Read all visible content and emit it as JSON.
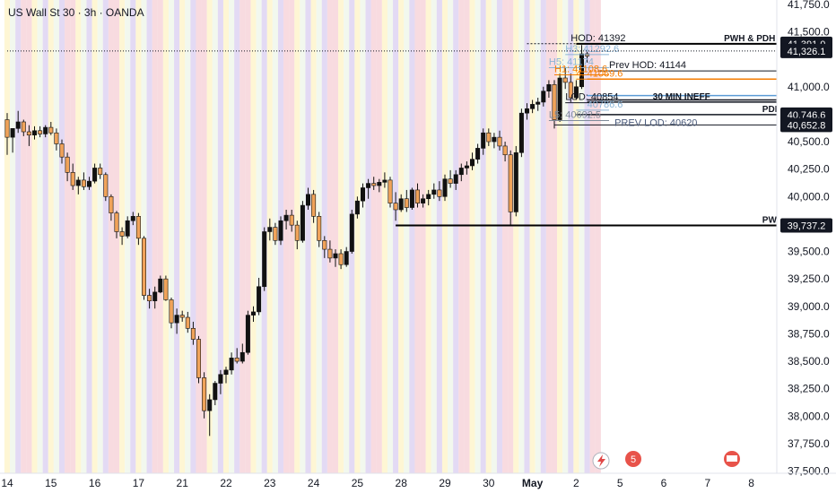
{
  "title": "US Wall St 30 · 3h · OANDA",
  "chart_data": {
    "type": "candlestick",
    "ylim": [
      37480,
      41790
    ],
    "y_ticks": [
      {
        "value": 41750,
        "label": "41,750.0"
      },
      {
        "value": 41500,
        "label": "41,500.0"
      },
      {
        "value": 41000,
        "label": "41,000.0"
      },
      {
        "value": 40500,
        "label": "40,500.0"
      },
      {
        "value": 40250,
        "label": "40,250.0"
      },
      {
        "value": 40000,
        "label": "40,000.0"
      },
      {
        "value": 39500,
        "label": "39,500.0"
      },
      {
        "value": 39250,
        "label": "39,250.0"
      },
      {
        "value": 39000,
        "label": "39,000.0"
      },
      {
        "value": 38750,
        "label": "38,750.0"
      },
      {
        "value": 38500,
        "label": "38,500.0"
      },
      {
        "value": 38250,
        "label": "38,250.0"
      },
      {
        "value": 38000,
        "label": "38,000.0"
      },
      {
        "value": 37750,
        "label": "37,750.0"
      },
      {
        "value": 37500,
        "label": "37,500.0"
      }
    ],
    "x_ticks": [
      {
        "label": "14",
        "bar": 0,
        "bold": false
      },
      {
        "label": "15",
        "bar": 8,
        "bold": false
      },
      {
        "label": "16",
        "bar": 16,
        "bold": false
      },
      {
        "label": "17",
        "bar": 24,
        "bold": false
      },
      {
        "label": "21",
        "bar": 32,
        "bold": false
      },
      {
        "label": "22",
        "bar": 40,
        "bold": false
      },
      {
        "label": "23",
        "bar": 48,
        "bold": false
      },
      {
        "label": "24",
        "bar": 56,
        "bold": false
      },
      {
        "label": "25",
        "bar": 64,
        "bold": false
      },
      {
        "label": "28",
        "bar": 72,
        "bold": false
      },
      {
        "label": "29",
        "bar": 80,
        "bold": false
      },
      {
        "label": "30",
        "bar": 88,
        "bold": false
      },
      {
        "label": "May",
        "bar": 96,
        "bold": true
      },
      {
        "label": "2",
        "bar": 104,
        "bold": false
      },
      {
        "label": "5",
        "bar": 112,
        "bold": false
      },
      {
        "label": "6",
        "bar": 120,
        "bold": false
      },
      {
        "label": "7",
        "bar": 128,
        "bold": false
      },
      {
        "label": "8",
        "bar": 136,
        "bold": false
      }
    ],
    "bar_count": 142,
    "candles": [
      [
        40700,
        40760,
        40380,
        40540
      ],
      [
        40540,
        40620,
        40400,
        40620
      ],
      [
        40620,
        40780,
        40580,
        40680
      ],
      [
        40680,
        40700,
        40550,
        40590
      ],
      [
        40590,
        40650,
        40460,
        40560
      ],
      [
        40560,
        40640,
        40520,
        40600
      ],
      [
        40600,
        40640,
        40540,
        40570
      ],
      [
        40570,
        40650,
        40540,
        40630
      ],
      [
        40630,
        40680,
        40560,
        40580
      ],
      [
        40580,
        40620,
        40420,
        40480
      ],
      [
        40480,
        40520,
        40300,
        40360
      ],
      [
        40360,
        40400,
        40140,
        40220
      ],
      [
        40220,
        40300,
        40060,
        40100
      ],
      [
        40100,
        40180,
        40020,
        40150
      ],
      [
        40150,
        40220,
        40060,
        40090
      ],
      [
        40090,
        40180,
        40060,
        40140
      ],
      [
        40140,
        40300,
        40120,
        40260
      ],
      [
        40260,
        40300,
        40160,
        40200
      ],
      [
        40200,
        40220,
        39960,
        40000
      ],
      [
        40000,
        40020,
        39780,
        39850
      ],
      [
        39850,
        39870,
        39620,
        39680
      ],
      [
        39680,
        39720,
        39560,
        39640
      ],
      [
        39640,
        39820,
        39620,
        39780
      ],
      [
        39780,
        39860,
        39740,
        39820
      ],
      [
        39820,
        39850,
        39560,
        39620
      ],
      [
        39620,
        39640,
        39060,
        39100
      ],
      [
        39100,
        39160,
        38980,
        39050
      ],
      [
        39050,
        39180,
        38980,
        39130
      ],
      [
        39130,
        39280,
        39120,
        39250
      ],
      [
        39250,
        39280,
        39050,
        39060
      ],
      [
        39060,
        39080,
        38800,
        38850
      ],
      [
        38850,
        38980,
        38750,
        38920
      ],
      [
        38920,
        38960,
        38860,
        38900
      ],
      [
        38900,
        38950,
        38760,
        38800
      ],
      [
        38800,
        38860,
        38650,
        38700
      ],
      [
        38700,
        38730,
        38300,
        38350
      ],
      [
        38350,
        38400,
        37980,
        38050
      ],
      [
        38050,
        38200,
        37820,
        38150
      ],
      [
        38150,
        38320,
        38100,
        38300
      ],
      [
        38300,
        38420,
        38200,
        38380
      ],
      [
        38380,
        38450,
        38300,
        38420
      ],
      [
        38420,
        38580,
        38380,
        38530
      ],
      [
        38530,
        38620,
        38480,
        38500
      ],
      [
        38500,
        38660,
        38480,
        38580
      ],
      [
        38580,
        38960,
        38560,
        38920
      ],
      [
        38920,
        39000,
        38860,
        38950
      ],
      [
        38950,
        39260,
        38920,
        39180
      ],
      [
        39180,
        39720,
        39140,
        39680
      ],
      [
        39680,
        39800,
        39600,
        39720
      ],
      [
        39720,
        39760,
        39560,
        39600
      ],
      [
        39600,
        39820,
        39560,
        39780
      ],
      [
        39780,
        39880,
        39700,
        39830
      ],
      [
        39830,
        39880,
        39680,
        39740
      ],
      [
        39740,
        39780,
        39520,
        39600
      ],
      [
        39600,
        39960,
        39580,
        39920
      ],
      [
        39920,
        40080,
        39880,
        40020
      ],
      [
        40020,
        40060,
        39760,
        39820
      ],
      [
        39820,
        39860,
        39540,
        39600
      ],
      [
        39600,
        39640,
        39440,
        39520
      ],
      [
        39520,
        39600,
        39400,
        39440
      ],
      [
        39440,
        39520,
        39360,
        39480
      ],
      [
        39480,
        39520,
        39340,
        39380
      ],
      [
        39380,
        39540,
        39360,
        39500
      ],
      [
        39500,
        39880,
        39480,
        39840
      ],
      [
        39840,
        40000,
        39800,
        39960
      ],
      [
        39960,
        40120,
        39900,
        40080
      ],
      [
        40080,
        40160,
        39980,
        40120
      ],
      [
        40120,
        40180,
        40060,
        40100
      ],
      [
        40100,
        40160,
        40040,
        40130
      ],
      [
        40130,
        40220,
        40080,
        40150
      ],
      [
        40150,
        40180,
        39900,
        39940
      ],
      [
        39940,
        40040,
        39780,
        39880
      ],
      [
        39880,
        40020,
        39860,
        39980
      ],
      [
        39980,
        40060,
        39860,
        39900
      ],
      [
        39900,
        40080,
        39880,
        40060
      ],
      [
        40060,
        40120,
        39900,
        39940
      ],
      [
        39940,
        40020,
        39900,
        39980
      ],
      [
        39980,
        40060,
        39920,
        40020
      ],
      [
        40020,
        40120,
        39980,
        40060
      ],
      [
        40060,
        40140,
        39960,
        40000
      ],
      [
        40000,
        40200,
        39960,
        40160
      ],
      [
        40160,
        40240,
        40080,
        40120
      ],
      [
        40120,
        40240,
        40060,
        40200
      ],
      [
        40200,
        40300,
        40140,
        40260
      ],
      [
        40260,
        40320,
        40200,
        40280
      ],
      [
        40280,
        40400,
        40240,
        40340
      ],
      [
        40340,
        40480,
        40300,
        40440
      ],
      [
        40440,
        40620,
        40380,
        40580
      ],
      [
        40580,
        40620,
        40460,
        40500
      ],
      [
        40500,
        40580,
        40440,
        40540
      ],
      [
        40540,
        40600,
        40420,
        40460
      ],
      [
        40460,
        40500,
        40320,
        40380
      ],
      [
        40380,
        40420,
        39740,
        39860
      ],
      [
        39860,
        40460,
        39820,
        40400
      ],
      [
        40400,
        40800,
        40360,
        40760
      ],
      [
        40760,
        40850,
        40700,
        40800
      ],
      [
        40800,
        40880,
        40760,
        40840
      ],
      [
        40840,
        40900,
        40780,
        40860
      ],
      [
        40860,
        41000,
        40820,
        40960
      ],
      [
        40960,
        41060,
        40900,
        41020
      ],
      [
        41020,
        41060,
        40620,
        40700
      ],
      [
        40700,
        41120,
        40680,
        41080
      ],
      [
        41080,
        41180,
        40980,
        41040
      ],
      [
        41040,
        41120,
        40860,
        40900
      ],
      [
        40900,
        41060,
        40880,
        41000
      ],
      [
        41000,
        41380,
        40980,
        41300
      ],
      [
        41300,
        41330,
        41220,
        41280
      ]
    ]
  },
  "levels": [
    {
      "name": "hod",
      "value": 41392,
      "label": "HOD: 41392",
      "color": "#131722",
      "x1": 95,
      "x2": 140,
      "width": 1,
      "dash": "2,2",
      "label_bar": 103
    },
    {
      "name": "pwh-pdh",
      "value": 41391,
      "label": "PWH & PDH",
      "price_label": "41,391.0",
      "color": "#000000",
      "x1": 104,
      "x2": 142,
      "width": 2,
      "dash": "",
      "label_bar": 131,
      "bold": true
    },
    {
      "name": "h3",
      "value": 41292.6,
      "label": "H3: 41292.6",
      "color": "#8ab4d6",
      "x1": 102,
      "x2": 110,
      "width": 1,
      "dash": "",
      "label_bar": 102
    },
    {
      "name": "current",
      "value": 41326.1,
      "label": "",
      "price_label": "41,326.1",
      "color": "#131722",
      "x1": 0,
      "x2": 142,
      "width": 1,
      "dash": "1,2",
      "label_bar": 0
    },
    {
      "name": "h5",
      "value": 41174,
      "label": "H5: 41174",
      "color": "#8ab4d6",
      "x1": 99,
      "x2": 110,
      "width": 1,
      "dash": "",
      "label_bar": 99
    },
    {
      "name": "prev-hod",
      "value": 41144,
      "label": "Prev HOD: 41144",
      "color": "#131722",
      "x1": 108,
      "x2": 142,
      "width": 1,
      "dash": "",
      "label_bar": 110
    },
    {
      "name": "h1",
      "value": 41108.6,
      "label": "H1: 41108.6",
      "color": "#f57c00",
      "x1": 100,
      "x2": 110,
      "width": 1,
      "dash": "",
      "label_bar": 100
    },
    {
      "name": "orange-1",
      "value": 41070,
      "label": "",
      "color": "#f57c00",
      "x1": 106,
      "x2": 142,
      "width": 1.5,
      "dash": "",
      "label_bar": 0
    },
    {
      "name": "l1",
      "value": 41069.6,
      "label": "4: 41069.6",
      "color": "#f57c00",
      "x1": 104,
      "x2": 110,
      "width": 1,
      "dash": "",
      "label_bar": 104
    },
    {
      "name": "blue-1",
      "value": 40920,
      "label": "",
      "color": "#5b9bd5",
      "x1": 106,
      "x2": 142,
      "width": 1.5,
      "dash": "",
      "label_bar": 0
    },
    {
      "name": "ineff-top",
      "value": 40880,
      "label": "",
      "color": "#131722",
      "x1": 106,
      "x2": 142,
      "width": 1.5,
      "dash": "",
      "label_bar": 0
    },
    {
      "name": "ineff",
      "value": 40860,
      "label": "30 MIN INEFF",
      "color": "#131722",
      "x1": 106,
      "x2": 142,
      "width": 1.5,
      "dash": "",
      "label_bar": 118,
      "bold": true
    },
    {
      "name": "lod",
      "value": 40854,
      "label": "LOD: 40854",
      "color": "#131722",
      "x1": 102,
      "x2": 110,
      "width": 1,
      "dash": "",
      "label_bar": 102
    },
    {
      "name": "l3",
      "value": 40786.6,
      "label": "40786.6",
      "color": "#8ab4d6",
      "x1": 104,
      "x2": 110,
      "width": 1,
      "dash": "",
      "label_bar": 106
    },
    {
      "name": "pdl",
      "value": 40746.6,
      "label": "PDL",
      "price_label": "40,746.6",
      "color": "#131722",
      "x1": 104,
      "x2": 142,
      "width": 1.5,
      "dash": "",
      "label_bar": 138,
      "bold": true
    },
    {
      "name": "prev-lod",
      "value": 40652.8,
      "label": "",
      "price_label": "40,652.8",
      "color": "#131722",
      "x1": 100,
      "x2": 142,
      "width": 1,
      "dash": "",
      "label_bar": 0
    },
    {
      "name": "l5",
      "value": 40692.5,
      "label": "L5: 40692.5",
      "color": "#7f8c9a",
      "x1": 99,
      "x2": 110,
      "width": 1,
      "dash": "",
      "label_bar": 99
    },
    {
      "name": "prev-lod-label",
      "value": 40620,
      "label": "PREV LOD: 40620",
      "color": "#4a5a7a",
      "x1": 0,
      "x2": 0,
      "width": 0,
      "dash": "",
      "label_bar": 111
    },
    {
      "name": "pwl",
      "value": 39737.2,
      "label": "PWL",
      "price_label": "39,737.2",
      "color": "#000000",
      "x1": 71,
      "x2": 142,
      "width": 2,
      "dash": "",
      "label_bar": 138,
      "bold": true
    }
  ],
  "session_colors": {
    "asia": "#d9cdf0",
    "london": "#f6cfd6",
    "ny": "#fdf3c6",
    "gap": "#eef6e8"
  },
  "colors": {
    "up": "#111111",
    "down": "#f0a35a",
    "wick": "#111111"
  }
}
